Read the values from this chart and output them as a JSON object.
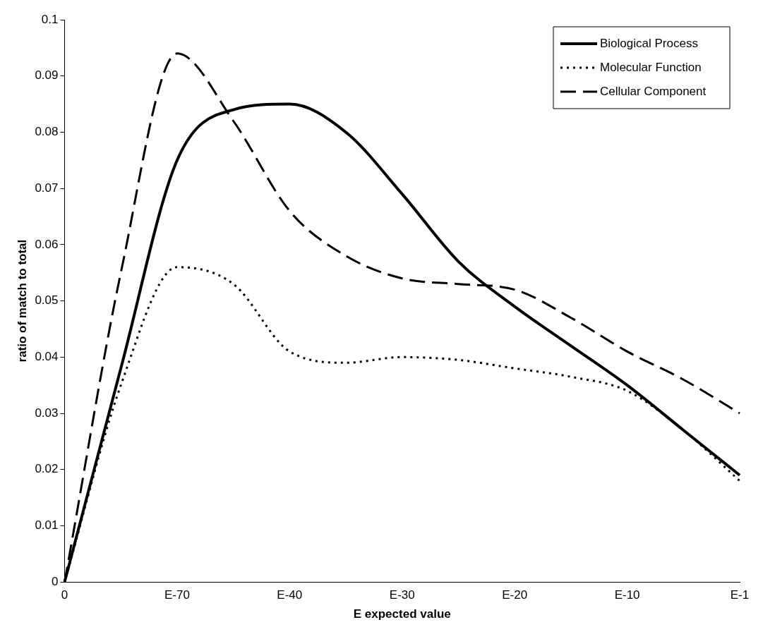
{
  "chart_data": {
    "type": "line",
    "xlabel": "E expected value",
    "ylabel": "ratio of match to total",
    "categories": [
      "0",
      null,
      "E-70",
      null,
      "E-40",
      null,
      "E-30",
      null,
      "E-20",
      null,
      "E-10",
      null,
      "E-1"
    ],
    "series": [
      {
        "name": "Biological Process",
        "color": "#000000",
        "line_style": "solid",
        "values": [
          0,
          0.038,
          0.075,
          0.084,
          0.085,
          0.08,
          0.069,
          0.057,
          0.049,
          0.042,
          0.035,
          0.027,
          0.019
        ]
      },
      {
        "name": "Molecular Function",
        "color": "#000000",
        "line_style": "dotted",
        "values": [
          0,
          0.035,
          0.056,
          0.053,
          0.041,
          0.039,
          0.04,
          0.0395,
          0.038,
          0.0365,
          0.034,
          0.027,
          0.018
        ]
      },
      {
        "name": "Cellular Component",
        "color": "#000000",
        "line_style": "dashed",
        "values": [
          0,
          0.055,
          0.094,
          0.082,
          0.066,
          0.058,
          0.054,
          0.053,
          0.052,
          0.047,
          0.041,
          0.036,
          0.03
        ]
      }
    ],
    "ylim": [
      0,
      0.1
    ],
    "yticks": [
      0,
      0.01,
      0.02,
      0.03,
      0.04,
      0.05,
      0.06,
      0.07,
      0.08,
      0.09,
      0.1
    ],
    "grid": false,
    "legend": "top right",
    "marker": "none"
  }
}
